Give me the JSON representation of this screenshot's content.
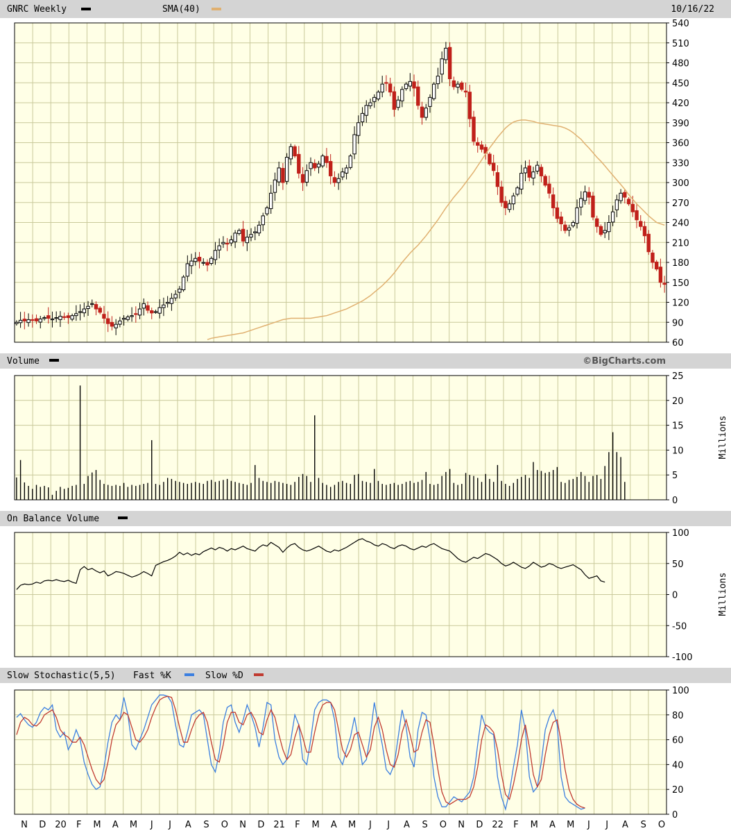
{
  "header": {
    "symbol_label": "GNRC Weekly",
    "sma_label": "SMA(40)",
    "date": "10/16/22"
  },
  "watermark": "©BigCharts.com",
  "colors": {
    "plot_bg": "#ffffe6",
    "grid": "#c9c99a",
    "header_bg": "#d4d4d4",
    "candle_up": "#000000",
    "candle_down": "#c0201a",
    "sma": "#e0b070",
    "volume": "#000000",
    "obv": "#000000",
    "fast_k": "#3b7fe0",
    "slow_d": "#c03a30"
  },
  "x_axis": {
    "tick_labels": [
      "N",
      "D",
      "20",
      "F",
      "M",
      "A",
      "M",
      "J",
      "J",
      "A",
      "S",
      "O",
      "N",
      "D",
      "21",
      "F",
      "M",
      "A",
      "M",
      "J",
      "J",
      "A",
      "S",
      "O",
      "N",
      "D",
      "22",
      "F",
      "M",
      "A",
      "M",
      "J",
      "J",
      "A",
      "S",
      "O"
    ]
  },
  "chart_data": [
    {
      "type": "candlestick",
      "panel": "price",
      "title": "GNRC Weekly",
      "ylim": [
        60,
        540
      ],
      "y_ticks": [
        60,
        90,
        120,
        150,
        180,
        210,
        240,
        270,
        300,
        330,
        360,
        390,
        420,
        450,
        480,
        510,
        540
      ],
      "close": [
        90,
        93,
        92,
        94,
        93,
        92,
        95,
        97,
        96,
        95,
        97,
        99,
        98,
        97,
        100,
        103,
        106,
        110,
        114,
        118,
        110,
        105,
        96,
        88,
        84,
        87,
        92,
        96,
        98,
        100,
        102,
        110,
        118,
        108,
        104,
        106,
        112,
        116,
        120,
        126,
        132,
        140,
        158,
        178,
        182,
        186,
        182,
        180,
        176,
        186,
        198,
        205,
        210,
        208,
        214,
        224,
        228,
        212,
        218,
        222,
        226,
        236,
        250,
        262,
        284,
        304,
        322,
        300,
        338,
        354,
        340,
        314,
        300,
        318,
        330,
        322,
        328,
        340,
        330,
        310,
        300,
        306,
        316,
        322,
        340,
        372,
        390,
        404,
        416,
        420,
        428,
        436,
        448,
        450,
        436,
        410,
        424,
        440,
        448,
        452,
        442,
        416,
        398,
        412,
        428,
        448,
        460,
        486,
        502,
        456,
        444,
        448,
        440,
        436,
        396,
        362,
        356,
        350,
        344,
        328,
        318,
        294,
        270,
        262,
        268,
        280,
        292,
        314,
        322,
        308,
        316,
        326,
        310,
        296,
        284,
        262,
        246,
        238,
        228,
        232,
        240,
        262,
        276,
        286,
        278,
        248,
        234,
        222,
        228,
        240,
        256,
        274,
        284,
        278,
        268,
        256,
        244,
        234,
        220,
        196,
        180,
        170,
        150,
        147
      ]
    },
    {
      "type": "line",
      "panel": "price",
      "name": "SMA(40)",
      "values": [
        64,
        66,
        67,
        68,
        69,
        70,
        71,
        72,
        73,
        74,
        76,
        78,
        80,
        82,
        84,
        86,
        88,
        90,
        92,
        94,
        95,
        96,
        96,
        96,
        96,
        96,
        96,
        97,
        98,
        99,
        100,
        102,
        104,
        106,
        108,
        110,
        113,
        116,
        119,
        122,
        126,
        130,
        135,
        140,
        145,
        151,
        157,
        164,
        172,
        180,
        187,
        194,
        200,
        206,
        213,
        220,
        228,
        236,
        244,
        253,
        262,
        270,
        278,
        285,
        292,
        300,
        308,
        316,
        325,
        334,
        343,
        352,
        360,
        368,
        375,
        382,
        387,
        391,
        393,
        394,
        394,
        393,
        392,
        390,
        389,
        388,
        387,
        386,
        385,
        384,
        382,
        379,
        375,
        370,
        365,
        358,
        352,
        345,
        338,
        332,
        325,
        318,
        311,
        304,
        297,
        290,
        282,
        275,
        268,
        262,
        256,
        250,
        245,
        240,
        238,
        236
      ]
    },
    {
      "type": "bar",
      "panel": "volume",
      "title": "Volume",
      "ylabel": "Millions",
      "ylim": [
        0,
        25
      ],
      "y_ticks": [
        0,
        5,
        10,
        15,
        20,
        25
      ],
      "values": [
        4.5,
        8.0,
        3.5,
        2.8,
        2.2,
        3.0,
        2.6,
        2.8,
        2.5,
        1.0,
        1.8,
        2.6,
        2.2,
        2.4,
        2.8,
        3.0,
        23.0,
        3.2,
        4.8,
        5.5,
        6.0,
        4.0,
        3.2,
        3.0,
        2.8,
        3.0,
        2.8,
        3.4,
        2.6,
        3.0,
        2.8,
        3.0,
        3.2,
        3.4,
        12.0,
        3.2,
        3.0,
        3.6,
        4.4,
        4.2,
        3.8,
        3.6,
        3.4,
        3.2,
        3.4,
        3.6,
        3.4,
        3.2,
        3.8,
        4.0,
        3.6,
        3.8,
        4.0,
        4.2,
        3.8,
        3.6,
        3.4,
        3.2,
        3.0,
        3.4,
        7.0,
        4.4,
        3.8,
        3.6,
        3.4,
        3.8,
        3.6,
        3.4,
        3.2,
        3.0,
        3.6,
        4.6,
        5.2,
        4.8,
        3.6,
        17.0,
        4.4,
        3.4,
        3.0,
        2.6,
        3.0,
        3.6,
        3.8,
        3.4,
        3.2,
        5.0,
        5.2,
        3.8,
        3.6,
        3.4,
        6.2,
        3.8,
        3.2,
        3.0,
        3.2,
        3.4,
        3.0,
        3.2,
        3.6,
        3.8,
        3.4,
        3.6,
        4.0,
        5.6,
        3.2,
        3.0,
        3.2,
        4.8,
        5.6,
        6.2,
        3.4,
        3.0,
        3.2,
        5.4,
        5.0,
        4.8,
        4.4,
        3.6,
        5.2,
        4.2,
        3.6,
        7.0,
        3.8,
        3.2,
        2.8,
        3.4,
        4.2,
        4.6,
        5.0,
        4.4,
        7.6,
        6.0,
        5.8,
        5.4,
        5.6,
        6.0,
        6.6,
        3.6,
        3.4,
        4.0,
        4.2,
        4.6,
        5.6,
        4.8,
        3.6,
        4.8,
        5.0,
        4.2,
        6.8,
        9.6,
        13.6,
        9.6,
        8.6,
        3.6
      ]
    },
    {
      "type": "line",
      "panel": "obv",
      "title": "On Balance Volume",
      "ylabel": "Millions",
      "ylim": [
        -100,
        100
      ],
      "y_ticks": [
        -100,
        -50,
        0,
        50,
        100
      ],
      "values": [
        8,
        15,
        17,
        16,
        17,
        20,
        18,
        22,
        23,
        22,
        24,
        22,
        21,
        23,
        20,
        18,
        40,
        45,
        40,
        42,
        38,
        35,
        38,
        30,
        33,
        37,
        36,
        34,
        31,
        28,
        30,
        33,
        37,
        34,
        30,
        47,
        50,
        53,
        55,
        58,
        62,
        68,
        64,
        67,
        63,
        66,
        64,
        69,
        72,
        75,
        72,
        76,
        74,
        70,
        74,
        72,
        75,
        78,
        74,
        72,
        70,
        76,
        80,
        78,
        84,
        80,
        76,
        68,
        75,
        80,
        82,
        76,
        72,
        70,
        72,
        75,
        78,
        74,
        70,
        68,
        72,
        70,
        73,
        76,
        80,
        84,
        88,
        90,
        86,
        84,
        80,
        78,
        82,
        80,
        76,
        74,
        78,
        80,
        78,
        74,
        72,
        75,
        78,
        76,
        80,
        82,
        78,
        74,
        72,
        70,
        64,
        58,
        54,
        52,
        56,
        60,
        58,
        62,
        66,
        64,
        60,
        56,
        50,
        46,
        48,
        52,
        48,
        44,
        42,
        46,
        52,
        48,
        44,
        46,
        50,
        48,
        44,
        42,
        44,
        46,
        48,
        44,
        40,
        32,
        26,
        28,
        30,
        22,
        20
      ]
    },
    {
      "type": "line",
      "panel": "stochastic",
      "title": "Slow Stochastic(5,5)",
      "ylim": [
        0,
        100
      ],
      "y_ticks": [
        0,
        20,
        40,
        60,
        80,
        100
      ],
      "series": [
        {
          "name": "Fast %K",
          "values": [
            78,
            81,
            76,
            72,
            70,
            74,
            82,
            86,
            84,
            88,
            68,
            62,
            66,
            52,
            58,
            68,
            60,
            42,
            32,
            24,
            20,
            22,
            38,
            58,
            74,
            80,
            76,
            94,
            80,
            56,
            52,
            60,
            68,
            78,
            88,
            92,
            96,
            96,
            95,
            90,
            72,
            56,
            54,
            66,
            80,
            82,
            84,
            80,
            60,
            40,
            34,
            50,
            74,
            86,
            88,
            74,
            66,
            76,
            88,
            80,
            70,
            54,
            70,
            90,
            88,
            60,
            46,
            40,
            44,
            60,
            80,
            72,
            44,
            40,
            60,
            84,
            90,
            92,
            92,
            90,
            76,
            46,
            40,
            52,
            62,
            78,
            60,
            40,
            44,
            64,
            90,
            72,
            56,
            36,
            32,
            40,
            62,
            84,
            70,
            46,
            38,
            68,
            82,
            80,
            60,
            30,
            14,
            6,
            6,
            10,
            14,
            12,
            10,
            14,
            18,
            30,
            56,
            80,
            70,
            66,
            64,
            30,
            14,
            4,
            18,
            38,
            56,
            84,
            68,
            30,
            18,
            22,
            42,
            68,
            78,
            84,
            72,
            30,
            14,
            10,
            8,
            6,
            4,
            5
          ]
        },
        {
          "name": "Slow %D",
          "values": [
            64,
            74,
            78,
            76,
            72,
            71,
            74,
            80,
            82,
            84,
            78,
            68,
            64,
            62,
            58,
            58,
            62,
            56,
            46,
            36,
            28,
            24,
            28,
            42,
            60,
            72,
            76,
            82,
            80,
            70,
            60,
            58,
            62,
            68,
            78,
            86,
            92,
            94,
            95,
            94,
            84,
            70,
            58,
            58,
            68,
            76,
            80,
            82,
            74,
            58,
            44,
            42,
            56,
            74,
            82,
            82,
            74,
            72,
            80,
            82,
            76,
            66,
            64,
            76,
            84,
            78,
            64,
            52,
            44,
            48,
            62,
            72,
            62,
            50,
            50,
            66,
            80,
            88,
            90,
            90,
            84,
            68,
            52,
            46,
            52,
            64,
            66,
            56,
            46,
            52,
            70,
            78,
            68,
            52,
            40,
            38,
            48,
            66,
            76,
            64,
            50,
            52,
            66,
            76,
            74,
            56,
            36,
            18,
            10,
            8,
            10,
            12,
            12,
            12,
            14,
            22,
            38,
            60,
            72,
            70,
            66,
            52,
            32,
            16,
            12,
            24,
            40,
            60,
            72,
            54,
            32,
            22,
            28,
            48,
            64,
            74,
            76,
            58,
            36,
            20,
            12,
            8,
            6,
            5
          ]
        }
      ]
    }
  ]
}
